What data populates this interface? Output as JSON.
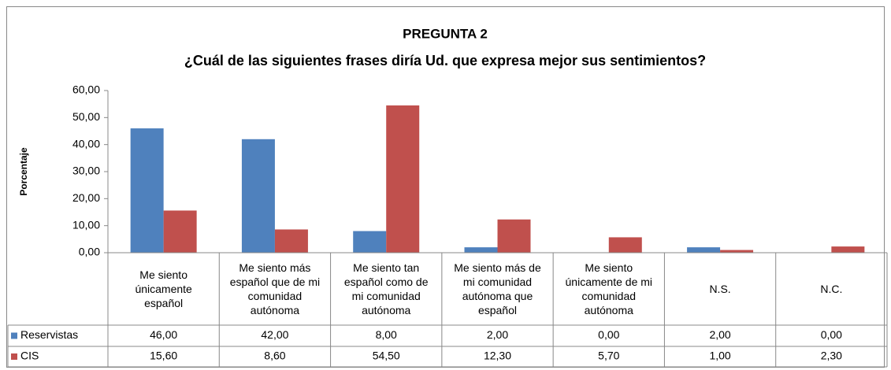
{
  "chart_data": {
    "type": "bar",
    "title": "PREGUNTA 2",
    "subtitle": "¿Cuál de las siguientes frases diría Ud. que expresa mejor sus sentimientos?",
    "y_label": "Porcentaje",
    "categories": [
      "Me siento únicamente español",
      "Me siento más español que de mi comunidad autónoma",
      "Me siento tan español como de mi comunidad autónoma",
      "Me siento más de mi comunidad autónoma que español",
      "Me siento únicamente de mi comunidad autónoma",
      "N.S.",
      "N.C."
    ],
    "series": [
      {
        "name": "Reservistas",
        "color": "#4f81bd",
        "values": [
          46,
          42,
          8,
          2,
          0,
          2,
          0
        ],
        "value_labels": [
          "46,00",
          "42,00",
          "8,00",
          "2,00",
          "0,00",
          "2,00",
          "0,00"
        ]
      },
      {
        "name": "CIS",
        "color": "#c0504d",
        "values": [
          15.6,
          8.6,
          54.5,
          12.3,
          5.7,
          1,
          2.3
        ],
        "value_labels": [
          "15,60",
          "8,60",
          "54,50",
          "12,30",
          "5,70",
          "1,00",
          "2,30"
        ]
      }
    ],
    "ylim": [
      0,
      60
    ],
    "yticks": [
      {
        "value": 0,
        "label": "0,00"
      },
      {
        "value": 10,
        "label": "10,00"
      },
      {
        "value": 20,
        "label": "20,00"
      },
      {
        "value": 30,
        "label": "30,00"
      },
      {
        "value": 40,
        "label": "40,00"
      },
      {
        "value": 50,
        "label": "50,00"
      },
      {
        "value": 60,
        "label": "60,00"
      }
    ],
    "grid": false
  }
}
